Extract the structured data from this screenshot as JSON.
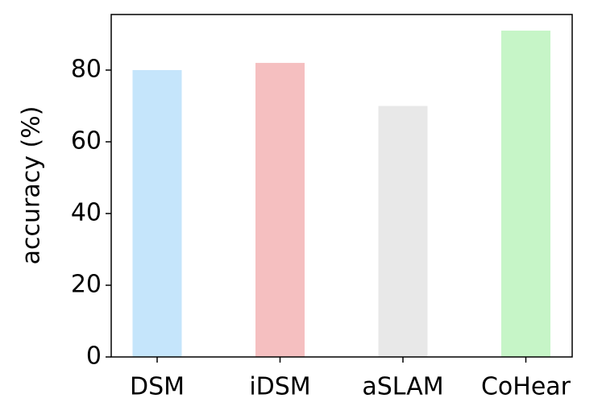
{
  "chart_data": {
    "type": "bar",
    "ylabel": "accuracy (%)",
    "categories": [
      "DSM",
      "iDSM",
      "aSLAM",
      "CoHear"
    ],
    "values": [
      80,
      82,
      70,
      91
    ],
    "colors": [
      "#c5e5fb",
      "#f5bfc0",
      "#e8e8e8",
      "#c6f5c7"
    ],
    "ylim": [
      0,
      95.5
    ],
    "yticks": [
      0,
      20,
      40,
      60,
      80
    ]
  }
}
